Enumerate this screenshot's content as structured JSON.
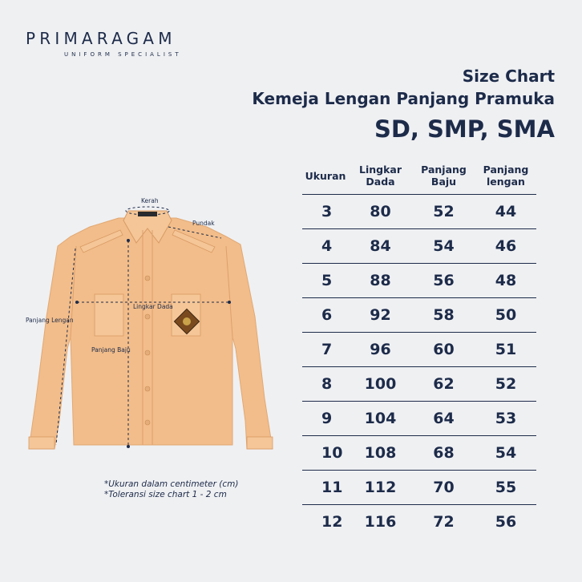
{
  "brand": {
    "name": "PRIMARAGAM",
    "tagline": "UNIFORM SPECIALIST"
  },
  "title": {
    "line1": "Size Chart",
    "line2": "Kemeja Lengan Panjang Pramuka",
    "line3": "SD, SMP, SMA"
  },
  "diagram": {
    "labels": {
      "collar": "Kerah",
      "shoulder": "Pundak",
      "chest": "Lingkar Dada",
      "sleeve": "Panjang Lengan",
      "body": "Panjang Baju"
    }
  },
  "notes": [
    "*Ukuran dalam centimeter (cm)",
    "*Toleransi size chart 1 - 2 cm"
  ],
  "colors": {
    "navy": "#1d2b4a",
    "shirt": "#f2bd8a",
    "background": "#eff0f2"
  },
  "chart_data": {
    "type": "table",
    "columns": [
      [
        "Ukuran"
      ],
      [
        "Lingkar",
        "Dada"
      ],
      [
        "Panjang",
        "Baju"
      ],
      [
        "Panjang",
        "lengan"
      ]
    ],
    "rows": [
      [
        "3",
        "80",
        "52",
        "44"
      ],
      [
        "4",
        "84",
        "54",
        "46"
      ],
      [
        "5",
        "88",
        "56",
        "48"
      ],
      [
        "6",
        "92",
        "58",
        "50"
      ],
      [
        "7",
        "96",
        "60",
        "51"
      ],
      [
        "8",
        "100",
        "62",
        "52"
      ],
      [
        "9",
        "104",
        "64",
        "53"
      ],
      [
        "10",
        "108",
        "68",
        "54"
      ],
      [
        "11",
        "112",
        "70",
        "55"
      ],
      [
        "12",
        "116",
        "72",
        "56"
      ]
    ]
  }
}
